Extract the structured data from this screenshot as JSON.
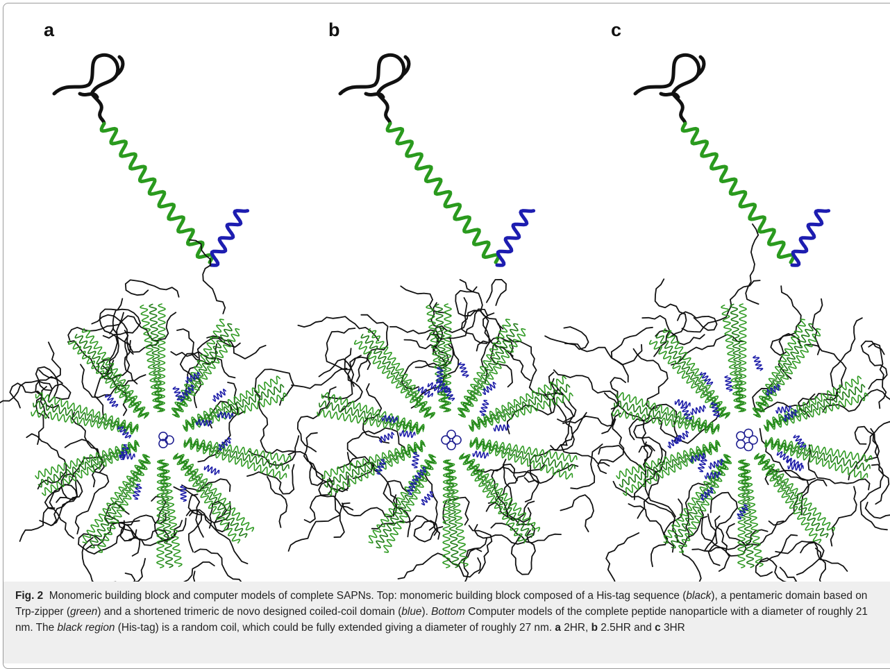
{
  "panels": [
    {
      "label": "a"
    },
    {
      "label": "b"
    },
    {
      "label": "c"
    }
  ],
  "caption": [
    "Fig. 2",
    "Monomeric building block and computer models of complete SAPNs. Top: monomeric building block composed of a His-tag sequence (",
    "black",
    "), a pentameric domain based on Trp-zipper (",
    "green",
    ") and a shortened trimeric de novo designed coiled-coil domain (",
    "blue",
    ").",
    "Bottom",
    "Computer models of the complete peptide nanoparticle with a diameter of roughly 21 nm. The",
    "black region",
    "(His-tag) is a random coil, which could be fully extended giving a diameter of roughly 27 nm.",
    "a",
    "2HR,",
    "b",
    "2.5HR and",
    "c",
    "3HR"
  ]
}
